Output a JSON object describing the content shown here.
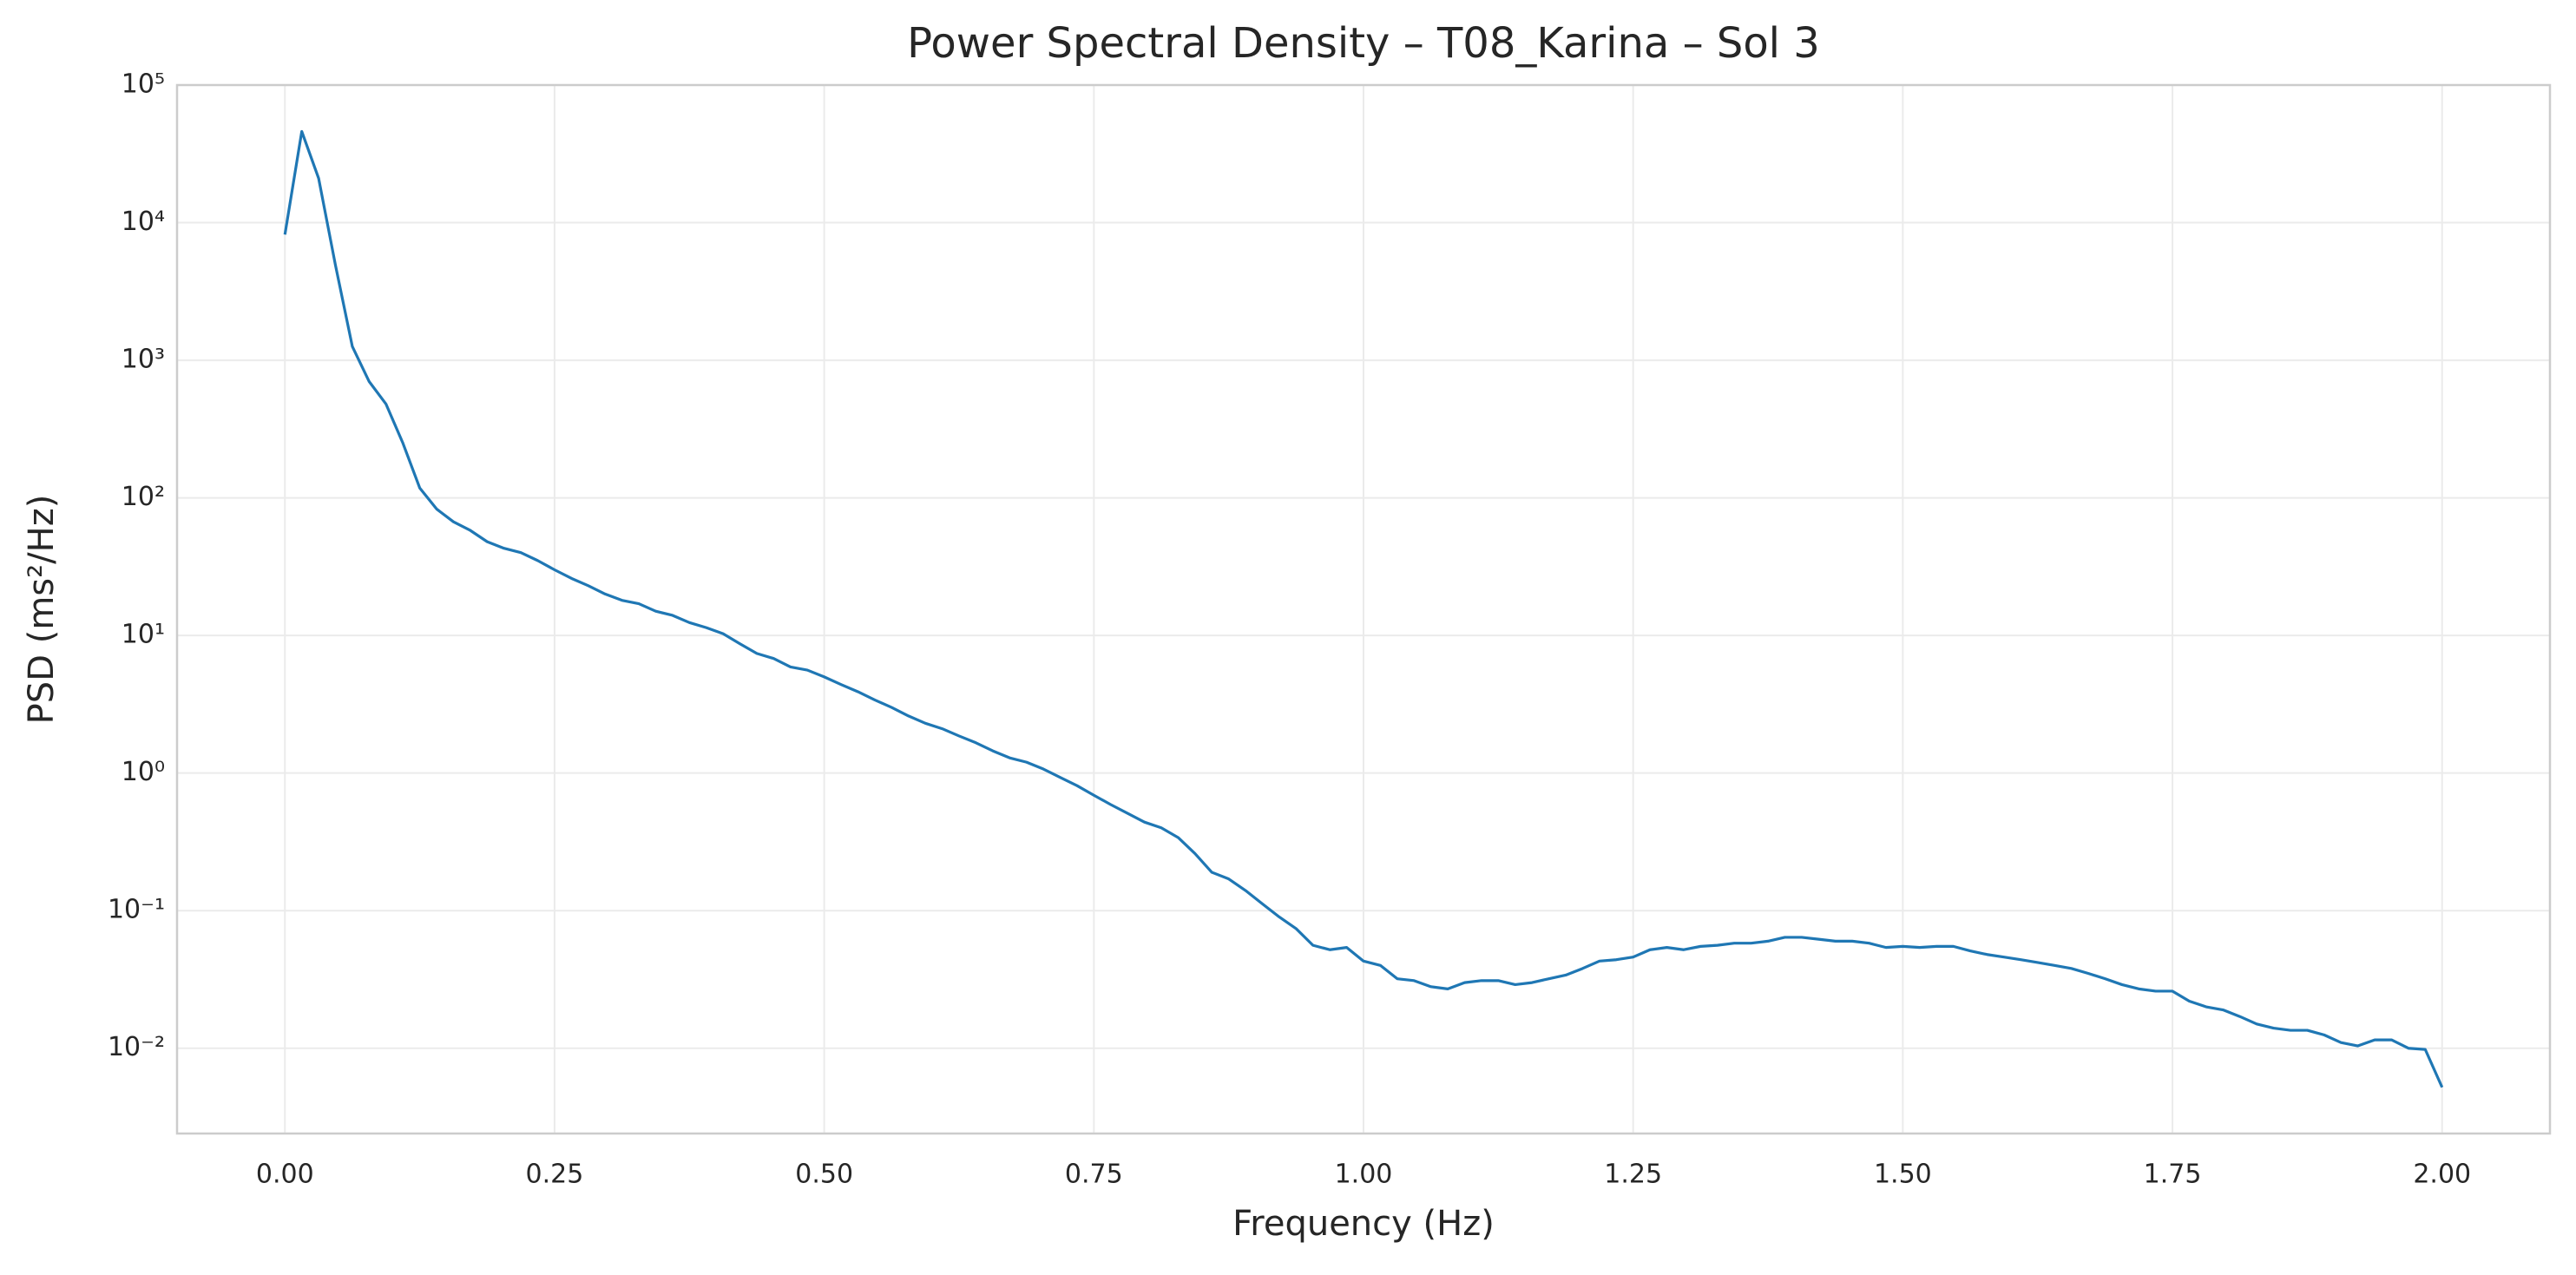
{
  "chart_data": {
    "type": "line",
    "title": "Power Spectral Density – T08_Karina – Sol 3",
    "xlabel": "Frequency (Hz)",
    "ylabel": "PSD (ms²/Hz)",
    "color": "#1f77b4",
    "grid": true,
    "ylog": true,
    "xlim": [
      -0.1,
      2.1
    ],
    "ylim": [
      0.0024,
      100000
    ],
    "xticks": [
      {
        "value": 0,
        "label": "0.00"
      },
      {
        "value": 0.25,
        "label": "0.25"
      },
      {
        "value": 0.5,
        "label": "0.50"
      },
      {
        "value": 0.75,
        "label": "0.75"
      },
      {
        "value": 1,
        "label": "1.00"
      },
      {
        "value": 1.25,
        "label": "1.25"
      },
      {
        "value": 1.5,
        "label": "1.50"
      },
      {
        "value": 1.75,
        "label": "1.75"
      },
      {
        "value": 2,
        "label": "2.00"
      }
    ],
    "yticks": [
      {
        "value": 0.01,
        "label": "10⁻²"
      },
      {
        "value": 0.1,
        "label": "10⁻¹"
      },
      {
        "value": 1,
        "label": "10⁰"
      },
      {
        "value": 10,
        "label": "10¹"
      },
      {
        "value": 100,
        "label": "10²"
      },
      {
        "value": 1000,
        "label": "10³"
      },
      {
        "value": 10000,
        "label": "10⁴"
      },
      {
        "value": 100000,
        "label": "10⁵"
      }
    ],
    "x": [
      0,
      0.015625,
      0.03125,
      0.046875,
      0.0625,
      0.078125,
      0.09375,
      0.109375,
      0.125,
      0.140625,
      0.15625,
      0.171875,
      0.1875,
      0.203125,
      0.21875,
      0.234375,
      0.25,
      0.265625,
      0.28125,
      0.296875,
      0.3125,
      0.328125,
      0.34375,
      0.359375,
      0.375,
      0.390625,
      0.40625,
      0.421875,
      0.4375,
      0.453125,
      0.46875,
      0.484375,
      0.5,
      0.515625,
      0.53125,
      0.546875,
      0.5625,
      0.578125,
      0.59375,
      0.609375,
      0.625,
      0.640625,
      0.65625,
      0.671875,
      0.6875,
      0.703125,
      0.71875,
      0.734375,
      0.75,
      0.765625,
      0.78125,
      0.796875,
      0.8125,
      0.828125,
      0.84375,
      0.859375,
      0.875,
      0.890625,
      0.90625,
      0.921875,
      0.9375,
      0.953125,
      0.96875,
      0.984375,
      1,
      1.015625,
      1.03125,
      1.046875,
      1.0625,
      1.078125,
      1.09375,
      1.109375,
      1.125,
      1.140625,
      1.15625,
      1.171875,
      1.1875,
      1.203125,
      1.21875,
      1.234375,
      1.25,
      1.265625,
      1.28125,
      1.296875,
      1.3125,
      1.328125,
      1.34375,
      1.359375,
      1.375,
      1.390625,
      1.40625,
      1.421875,
      1.4375,
      1.453125,
      1.46875,
      1.484375,
      1.5,
      1.515625,
      1.53125,
      1.546875,
      1.5625,
      1.578125,
      1.59375,
      1.609375,
      1.625,
      1.640625,
      1.65625,
      1.671875,
      1.6875,
      1.703125,
      1.71875,
      1.734375,
      1.75,
      1.765625,
      1.78125,
      1.796875,
      1.8125,
      1.828125,
      1.84375,
      1.859375,
      1.875,
      1.890625,
      1.90625,
      1.921875,
      1.9375,
      1.953125,
      1.96875,
      1.984375,
      2
    ],
    "values": [
      8200,
      46000,
      21000,
      4900,
      1260,
      700,
      480,
      250,
      118,
      83,
      67,
      58,
      48,
      43,
      40,
      35,
      30,
      26,
      23,
      20,
      18,
      17,
      15,
      14,
      12.4,
      11.4,
      10.3,
      8.7,
      7.4,
      6.8,
      5.9,
      5.6,
      5.0,
      4.4,
      3.9,
      3.4,
      3.0,
      2.6,
      2.3,
      2.1,
      1.86,
      1.66,
      1.45,
      1.29,
      1.2,
      1.07,
      0.93,
      0.81,
      0.69,
      0.59,
      0.51,
      0.44,
      0.4,
      0.34,
      0.26,
      0.19,
      0.17,
      0.14,
      0.112,
      0.09,
      0.074,
      0.056,
      0.052,
      0.054,
      0.043,
      0.04,
      0.032,
      0.031,
      0.028,
      0.027,
      0.03,
      0.031,
      0.031,
      0.029,
      0.03,
      0.032,
      0.034,
      0.038,
      0.043,
      0.044,
      0.046,
      0.052,
      0.054,
      0.052,
      0.055,
      0.056,
      0.058,
      0.058,
      0.06,
      0.064,
      0.064,
      0.062,
      0.06,
      0.06,
      0.058,
      0.054,
      0.055,
      0.054,
      0.055,
      0.055,
      0.051,
      0.048,
      0.046,
      0.044,
      0.042,
      0.04,
      0.038,
      0.035,
      0.032,
      0.029,
      0.027,
      0.026,
      0.026,
      0.022,
      0.02,
      0.019,
      0.017,
      0.015,
      0.014,
      0.0135,
      0.0135,
      0.0125,
      0.011,
      0.0104,
      0.0115,
      0.0115,
      0.01,
      0.0098,
      0.0052
    ]
  }
}
